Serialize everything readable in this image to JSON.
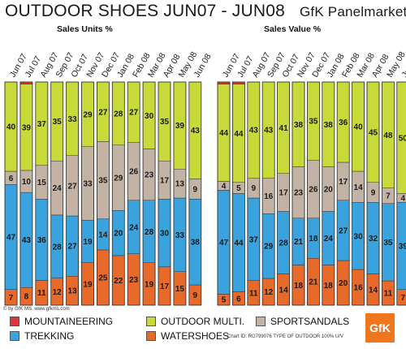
{
  "header": {
    "title": "OUTDOOR SHOES  JUN07 - JUN08",
    "brand": "GfK Panelmarket",
    "subtitle_left": "Sales Units %",
    "subtitle_right": "Sales Value %"
  },
  "footer": {
    "credit": "© by GfK MS, www.gfkms.com",
    "chart_id": "Chart ID: RG799076 TYPE OF OUTDOOR 100% U/V",
    "logo_text": "GfK"
  },
  "legend": [
    {
      "label": "MOUNTAINEERING",
      "color": "#e0353c"
    },
    {
      "label": "OUTDOOR MULTI.",
      "color": "#c8d93a"
    },
    {
      "label": "SPORTSANDALS",
      "color": "#c3b3a5"
    },
    {
      "label": "TREKKING",
      "color": "#3aa3dd"
    },
    {
      "label": "WATERSHOES",
      "color": "#e86a2a"
    }
  ],
  "chart_data": [
    {
      "type": "bar",
      "stacked": true,
      "title": "Sales Units %",
      "categories": [
        "Jun 07",
        "Jul 07",
        "Aug 07",
        "Sep 07",
        "Oct 07",
        "Nov 07",
        "Dec 07",
        "Jan 08",
        "Feb 08",
        "Mar 08",
        "Apr 08",
        "May 08",
        "Jun 08"
      ],
      "ylim": [
        0,
        100
      ],
      "series": [
        {
          "name": "WATERSHOES",
          "color": "#e86a2a",
          "values": [
            7,
            8,
            11,
            12,
            13,
            19,
            25,
            22,
            23,
            19,
            17,
            15,
            9
          ]
        },
        {
          "name": "TREKKING",
          "color": "#3aa3dd",
          "values": [
            47,
            43,
            36,
            28,
            27,
            19,
            14,
            20,
            24,
            28,
            30,
            33,
            38
          ]
        },
        {
          "name": "SPORTSANDALS",
          "color": "#c3b3a5",
          "values": [
            6,
            10,
            15,
            24,
            27,
            33,
            35,
            29,
            26,
            23,
            17,
            13,
            9
          ]
        },
        {
          "name": "OUTDOOR MULTI.",
          "color": "#c8d93a",
          "values": [
            40,
            39,
            37,
            35,
            33,
            29,
            27,
            28,
            27,
            30,
            35,
            39,
            43
          ]
        },
        {
          "name": "MOUNTAINEERING",
          "color": "#e0353c",
          "values": [
            0,
            1,
            0,
            0,
            0,
            0,
            0,
            0,
            0,
            0,
            0,
            0,
            0
          ]
        }
      ]
    },
    {
      "type": "bar",
      "stacked": true,
      "title": "Sales Value %",
      "categories": [
        "Jun 07",
        "Jul 07",
        "Aug 07",
        "Sep 07",
        "Oct 07",
        "Nov 07",
        "Dec 07",
        "Jan 08",
        "Feb 08",
        "Mar 08",
        "Apr 08",
        "May 08",
        "Jun 08"
      ],
      "ylim": [
        0,
        100
      ],
      "series": [
        {
          "name": "WATERSHOES",
          "color": "#e86a2a",
          "values": [
            5,
            6,
            11,
            12,
            14,
            18,
            21,
            18,
            20,
            16,
            14,
            11,
            7
          ]
        },
        {
          "name": "TREKKING",
          "color": "#3aa3dd",
          "values": [
            47,
            44,
            37,
            29,
            28,
            21,
            18,
            24,
            27,
            30,
            32,
            35,
            39
          ]
        },
        {
          "name": "SPORTSANDALS",
          "color": "#c3b3a5",
          "values": [
            4,
            5,
            9,
            16,
            17,
            23,
            26,
            20,
            17,
            14,
            9,
            7,
            4
          ]
        },
        {
          "name": "OUTDOOR MULTI.",
          "color": "#c8d93a",
          "values": [
            44,
            44,
            43,
            43,
            41,
            38,
            35,
            38,
            36,
            40,
            45,
            48,
            50
          ]
        },
        {
          "name": "MOUNTAINEERING",
          "color": "#e0353c",
          "values": [
            1,
            1,
            0,
            0,
            0,
            0,
            0,
            0,
            0,
            0,
            0,
            0,
            0
          ]
        }
      ]
    }
  ]
}
